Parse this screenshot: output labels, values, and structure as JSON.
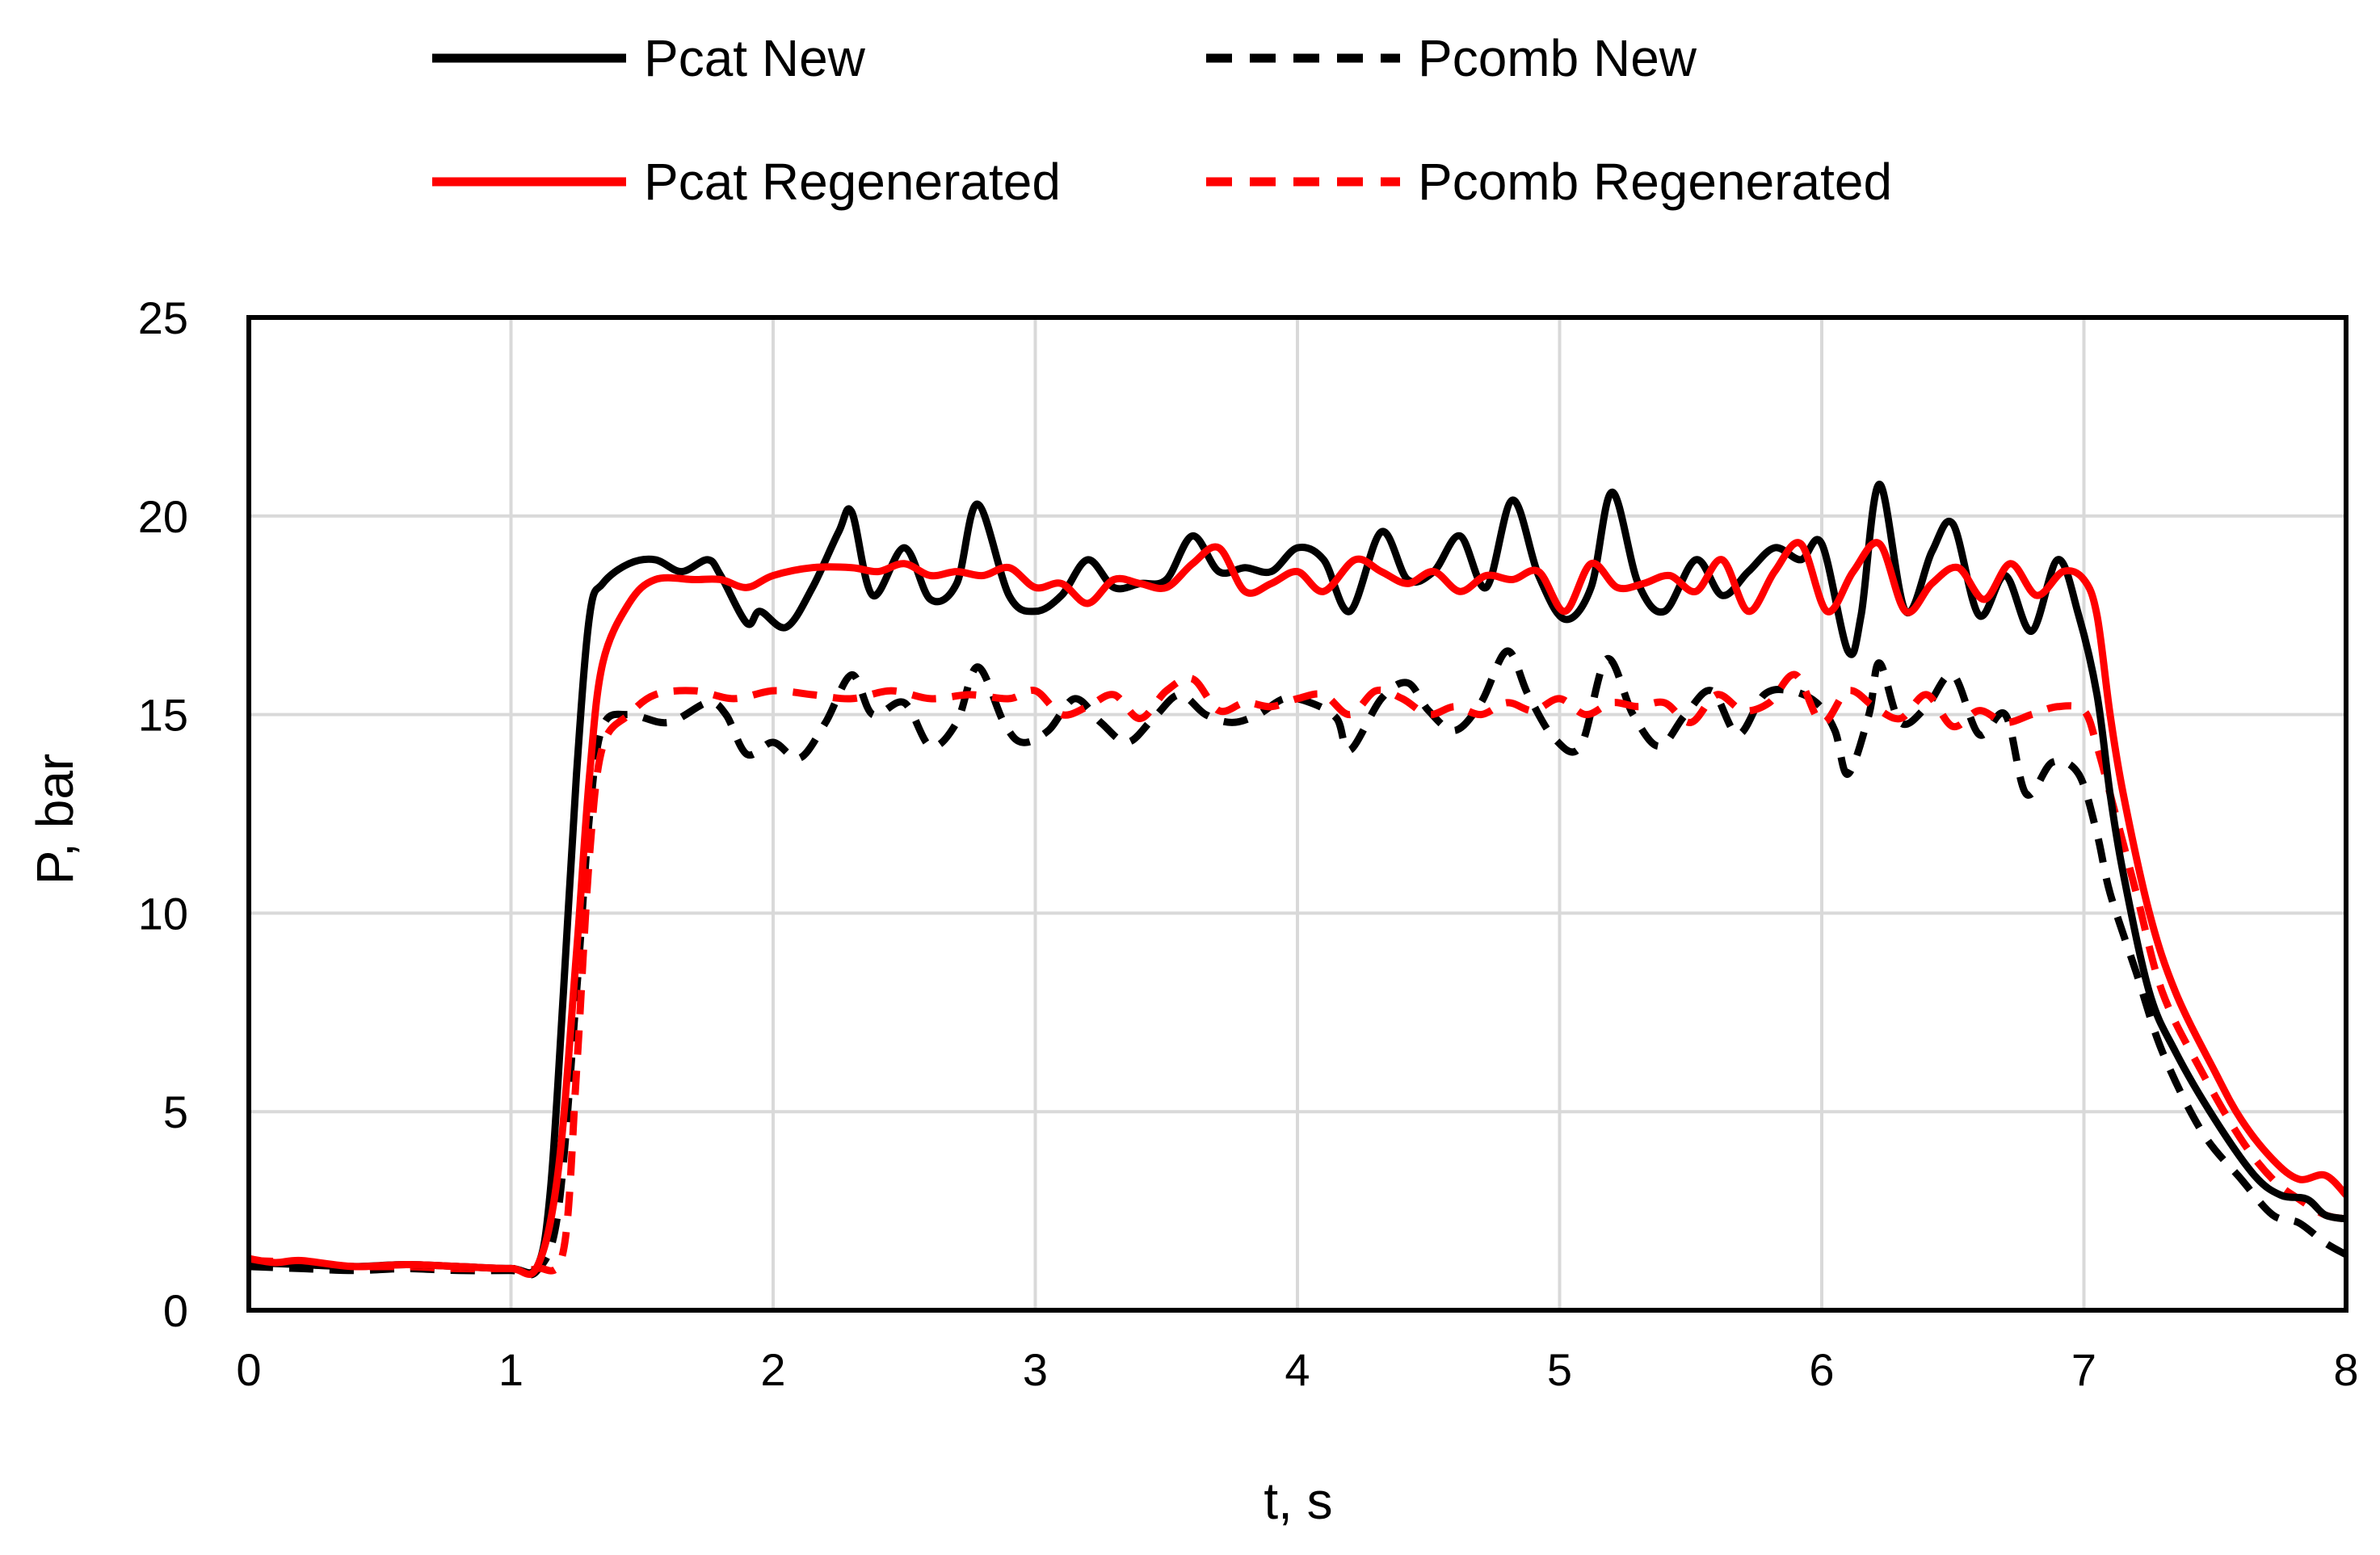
{
  "chart_data": {
    "type": "line",
    "title": "",
    "xlabel": "t, s",
    "ylabel": "P, bar",
    "xlim": [
      0,
      8
    ],
    "ylim": [
      0,
      25
    ],
    "xticks": [
      0,
      1,
      2,
      3,
      4,
      5,
      6,
      7,
      8
    ],
    "yticks": [
      0,
      5,
      10,
      15,
      20,
      25
    ],
    "grid": true,
    "legend_position": "top",
    "series": [
      {
        "name": "Pcat New",
        "color": "#000000",
        "dash": "solid",
        "points": [
          [
            0,
            1.2
          ],
          [
            0.2,
            1.15
          ],
          [
            0.4,
            1.1
          ],
          [
            0.6,
            1.15
          ],
          [
            0.8,
            1.1
          ],
          [
            1.0,
            1.05
          ],
          [
            1.1,
            1.1
          ],
          [
            1.15,
            3
          ],
          [
            1.2,
            8
          ],
          [
            1.25,
            13.5
          ],
          [
            1.3,
            17.5
          ],
          [
            1.35,
            18.3
          ],
          [
            1.45,
            18.8
          ],
          [
            1.55,
            18.9
          ],
          [
            1.65,
            18.6
          ],
          [
            1.75,
            18.9
          ],
          [
            1.8,
            18.5
          ],
          [
            1.9,
            17.3
          ],
          [
            1.95,
            17.6
          ],
          [
            2.05,
            17.2
          ],
          [
            2.15,
            18.2
          ],
          [
            2.25,
            19.6
          ],
          [
            2.3,
            20.1
          ],
          [
            2.38,
            18.0
          ],
          [
            2.5,
            19.2
          ],
          [
            2.6,
            17.9
          ],
          [
            2.7,
            18.3
          ],
          [
            2.78,
            20.3
          ],
          [
            2.9,
            18.0
          ],
          [
            3.0,
            17.6
          ],
          [
            3.1,
            18.0
          ],
          [
            3.2,
            18.9
          ],
          [
            3.3,
            18.2
          ],
          [
            3.4,
            18.3
          ],
          [
            3.5,
            18.4
          ],
          [
            3.6,
            19.5
          ],
          [
            3.7,
            18.6
          ],
          [
            3.8,
            18.7
          ],
          [
            3.9,
            18.6
          ],
          [
            4.0,
            19.2
          ],
          [
            4.1,
            18.9
          ],
          [
            4.2,
            17.6
          ],
          [
            4.32,
            19.6
          ],
          [
            4.42,
            18.4
          ],
          [
            4.52,
            18.6
          ],
          [
            4.62,
            19.5
          ],
          [
            4.72,
            18.2
          ],
          [
            4.82,
            20.4
          ],
          [
            4.92,
            18.5
          ],
          [
            5.02,
            17.4
          ],
          [
            5.12,
            18.2
          ],
          [
            5.2,
            20.6
          ],
          [
            5.3,
            18.3
          ],
          [
            5.4,
            17.6
          ],
          [
            5.52,
            18.9
          ],
          [
            5.62,
            18.0
          ],
          [
            5.72,
            18.6
          ],
          [
            5.82,
            19.2
          ],
          [
            5.92,
            18.9
          ],
          [
            6.0,
            19.3
          ],
          [
            6.1,
            16.6
          ],
          [
            6.15,
            17.5
          ],
          [
            6.22,
            20.8
          ],
          [
            6.32,
            17.6
          ],
          [
            6.42,
            19.1
          ],
          [
            6.5,
            19.8
          ],
          [
            6.6,
            17.5
          ],
          [
            6.7,
            18.5
          ],
          [
            6.8,
            17.1
          ],
          [
            6.9,
            18.9
          ],
          [
            6.98,
            17.5
          ],
          [
            7.05,
            15.5
          ],
          [
            7.1,
            13.0
          ],
          [
            7.15,
            11.0
          ],
          [
            7.25,
            8.0
          ],
          [
            7.35,
            6.5
          ],
          [
            7.5,
            4.8
          ],
          [
            7.65,
            3.4
          ],
          [
            7.75,
            2.9
          ],
          [
            7.85,
            2.8
          ],
          [
            7.92,
            2.4
          ],
          [
            8.0,
            2.3
          ]
        ]
      },
      {
        "name": "Pcomb New",
        "color": "#000000",
        "dash": "dashed",
        "points": [
          [
            0,
            1.1
          ],
          [
            0.2,
            1.05
          ],
          [
            0.4,
            1.0
          ],
          [
            0.6,
            1.05
          ],
          [
            0.8,
            1.0
          ],
          [
            1.0,
            1.0
          ],
          [
            1.1,
            1.0
          ],
          [
            1.18,
            2.5
          ],
          [
            1.25,
            8.0
          ],
          [
            1.3,
            12.5
          ],
          [
            1.35,
            14.7
          ],
          [
            1.45,
            15.0
          ],
          [
            1.6,
            14.8
          ],
          [
            1.75,
            15.3
          ],
          [
            1.82,
            15.0
          ],
          [
            1.9,
            14.0
          ],
          [
            2.0,
            14.3
          ],
          [
            2.1,
            13.9
          ],
          [
            2.2,
            14.8
          ],
          [
            2.3,
            16.0
          ],
          [
            2.38,
            15.0
          ],
          [
            2.5,
            15.3
          ],
          [
            2.6,
            14.2
          ],
          [
            2.7,
            14.8
          ],
          [
            2.78,
            16.2
          ],
          [
            2.88,
            14.8
          ],
          [
            2.95,
            14.3
          ],
          [
            3.05,
            14.6
          ],
          [
            3.15,
            15.4
          ],
          [
            3.25,
            14.8
          ],
          [
            3.35,
            14.3
          ],
          [
            3.45,
            14.9
          ],
          [
            3.55,
            15.5
          ],
          [
            3.65,
            15.0
          ],
          [
            3.75,
            14.8
          ],
          [
            3.85,
            15.0
          ],
          [
            3.95,
            15.4
          ],
          [
            4.05,
            15.3
          ],
          [
            4.15,
            14.9
          ],
          [
            4.2,
            14.1
          ],
          [
            4.32,
            15.4
          ],
          [
            4.42,
            15.8
          ],
          [
            4.5,
            15.1
          ],
          [
            4.6,
            14.6
          ],
          [
            4.7,
            15.3
          ],
          [
            4.8,
            16.6
          ],
          [
            4.88,
            15.5
          ],
          [
            4.98,
            14.4
          ],
          [
            5.08,
            14.2
          ],
          [
            5.18,
            16.4
          ],
          [
            5.28,
            15.0
          ],
          [
            5.38,
            14.2
          ],
          [
            5.48,
            15.0
          ],
          [
            5.58,
            15.6
          ],
          [
            5.68,
            14.5
          ],
          [
            5.78,
            15.5
          ],
          [
            5.88,
            15.6
          ],
          [
            5.98,
            15.3
          ],
          [
            6.05,
            14.6
          ],
          [
            6.1,
            13.5
          ],
          [
            6.18,
            15.0
          ],
          [
            6.22,
            16.3
          ],
          [
            6.3,
            14.8
          ],
          [
            6.4,
            15.2
          ],
          [
            6.5,
            16.0
          ],
          [
            6.6,
            14.5
          ],
          [
            6.7,
            15.0
          ],
          [
            6.78,
            13.0
          ],
          [
            6.88,
            13.8
          ],
          [
            6.98,
            13.5
          ],
          [
            7.05,
            12.0
          ],
          [
            7.1,
            10.5
          ],
          [
            7.2,
            8.5
          ],
          [
            7.3,
            6.5
          ],
          [
            7.45,
            4.5
          ],
          [
            7.6,
            3.3
          ],
          [
            7.72,
            2.4
          ],
          [
            7.82,
            2.2
          ],
          [
            7.92,
            1.7
          ],
          [
            8.0,
            1.4
          ]
        ]
      },
      {
        "name": "Pcat Regenerated",
        "color": "#ff0000",
        "dash": "solid",
        "points": [
          [
            0,
            1.3
          ],
          [
            0.1,
            1.2
          ],
          [
            0.2,
            1.25
          ],
          [
            0.4,
            1.1
          ],
          [
            0.6,
            1.15
          ],
          [
            0.8,
            1.1
          ],
          [
            1.0,
            1.05
          ],
          [
            1.1,
            1.1
          ],
          [
            1.18,
            3.5
          ],
          [
            1.25,
            9.0
          ],
          [
            1.3,
            13.5
          ],
          [
            1.35,
            16.3
          ],
          [
            1.45,
            17.8
          ],
          [
            1.55,
            18.4
          ],
          [
            1.7,
            18.4
          ],
          [
            1.8,
            18.4
          ],
          [
            1.9,
            18.2
          ],
          [
            2.0,
            18.5
          ],
          [
            2.15,
            18.7
          ],
          [
            2.3,
            18.7
          ],
          [
            2.4,
            18.6
          ],
          [
            2.5,
            18.8
          ],
          [
            2.6,
            18.5
          ],
          [
            2.7,
            18.6
          ],
          [
            2.8,
            18.5
          ],
          [
            2.9,
            18.7
          ],
          [
            3.0,
            18.2
          ],
          [
            3.1,
            18.3
          ],
          [
            3.2,
            17.8
          ],
          [
            3.3,
            18.4
          ],
          [
            3.4,
            18.3
          ],
          [
            3.5,
            18.2
          ],
          [
            3.6,
            18.8
          ],
          [
            3.7,
            19.2
          ],
          [
            3.8,
            18.1
          ],
          [
            3.9,
            18.3
          ],
          [
            4.0,
            18.6
          ],
          [
            4.1,
            18.1
          ],
          [
            4.22,
            18.9
          ],
          [
            4.32,
            18.6
          ],
          [
            4.42,
            18.3
          ],
          [
            4.52,
            18.6
          ],
          [
            4.62,
            18.1
          ],
          [
            4.72,
            18.5
          ],
          [
            4.82,
            18.4
          ],
          [
            4.92,
            18.6
          ],
          [
            5.02,
            17.6
          ],
          [
            5.12,
            18.8
          ],
          [
            5.22,
            18.2
          ],
          [
            5.32,
            18.3
          ],
          [
            5.42,
            18.5
          ],
          [
            5.52,
            18.1
          ],
          [
            5.62,
            18.9
          ],
          [
            5.72,
            17.6
          ],
          [
            5.82,
            18.6
          ],
          [
            5.92,
            19.3
          ],
          [
            6.02,
            17.6
          ],
          [
            6.12,
            18.6
          ],
          [
            6.22,
            19.3
          ],
          [
            6.32,
            17.6
          ],
          [
            6.42,
            18.3
          ],
          [
            6.52,
            18.7
          ],
          [
            6.62,
            17.9
          ],
          [
            6.72,
            18.8
          ],
          [
            6.82,
            18.0
          ],
          [
            6.92,
            18.6
          ],
          [
            7.0,
            18.4
          ],
          [
            7.05,
            17.5
          ],
          [
            7.1,
            15.0
          ],
          [
            7.15,
            13.0
          ],
          [
            7.25,
            10.0
          ],
          [
            7.35,
            8.0
          ],
          [
            7.5,
            6.0
          ],
          [
            7.6,
            4.8
          ],
          [
            7.72,
            3.8
          ],
          [
            7.82,
            3.3
          ],
          [
            7.92,
            3.4
          ],
          [
            8.0,
            2.9
          ]
        ]
      },
      {
        "name": "Pcomb Regenerated",
        "color": "#ff0000",
        "dash": "dashed",
        "points": [
          [
            0,
            1.25
          ],
          [
            0.2,
            1.2
          ],
          [
            0.4,
            1.1
          ],
          [
            0.6,
            1.1
          ],
          [
            0.8,
            1.05
          ],
          [
            1.0,
            1.05
          ],
          [
            1.1,
            1.05
          ],
          [
            1.2,
            1.5
          ],
          [
            1.25,
            6.0
          ],
          [
            1.3,
            11.5
          ],
          [
            1.35,
            14.2
          ],
          [
            1.45,
            15.0
          ],
          [
            1.55,
            15.5
          ],
          [
            1.7,
            15.6
          ],
          [
            1.85,
            15.4
          ],
          [
            2.0,
            15.6
          ],
          [
            2.15,
            15.5
          ],
          [
            2.3,
            15.4
          ],
          [
            2.45,
            15.6
          ],
          [
            2.6,
            15.4
          ],
          [
            2.75,
            15.5
          ],
          [
            2.9,
            15.4
          ],
          [
            3.0,
            15.6
          ],
          [
            3.1,
            15.0
          ],
          [
            3.2,
            15.2
          ],
          [
            3.3,
            15.5
          ],
          [
            3.4,
            14.9
          ],
          [
            3.5,
            15.6
          ],
          [
            3.6,
            15.9
          ],
          [
            3.7,
            15.1
          ],
          [
            3.8,
            15.3
          ],
          [
            3.9,
            15.2
          ],
          [
            4.0,
            15.4
          ],
          [
            4.1,
            15.5
          ],
          [
            4.2,
            15.0
          ],
          [
            4.3,
            15.6
          ],
          [
            4.4,
            15.4
          ],
          [
            4.5,
            15.0
          ],
          [
            4.6,
            15.2
          ],
          [
            4.7,
            15.0
          ],
          [
            4.8,
            15.3
          ],
          [
            4.9,
            15.1
          ],
          [
            5.0,
            15.4
          ],
          [
            5.1,
            15.0
          ],
          [
            5.2,
            15.3
          ],
          [
            5.3,
            15.2
          ],
          [
            5.4,
            15.3
          ],
          [
            5.5,
            14.8
          ],
          [
            5.6,
            15.5
          ],
          [
            5.7,
            15.1
          ],
          [
            5.8,
            15.3
          ],
          [
            5.9,
            16.0
          ],
          [
            6.0,
            14.8
          ],
          [
            6.1,
            15.6
          ],
          [
            6.2,
            15.2
          ],
          [
            6.3,
            14.9
          ],
          [
            6.4,
            15.5
          ],
          [
            6.5,
            14.7
          ],
          [
            6.6,
            15.1
          ],
          [
            6.7,
            14.8
          ],
          [
            6.8,
            15.0
          ],
          [
            6.9,
            15.2
          ],
          [
            7.0,
            15.1
          ],
          [
            7.05,
            14.2
          ],
          [
            7.1,
            13.0
          ],
          [
            7.2,
            10.5
          ],
          [
            7.3,
            8.0
          ],
          [
            7.45,
            6.0
          ],
          [
            7.6,
            4.3
          ],
          [
            7.72,
            3.3
          ],
          [
            7.82,
            2.8
          ],
          [
            7.92,
            2.4
          ],
          [
            8.0,
            2.3
          ]
        ]
      }
    ]
  }
}
